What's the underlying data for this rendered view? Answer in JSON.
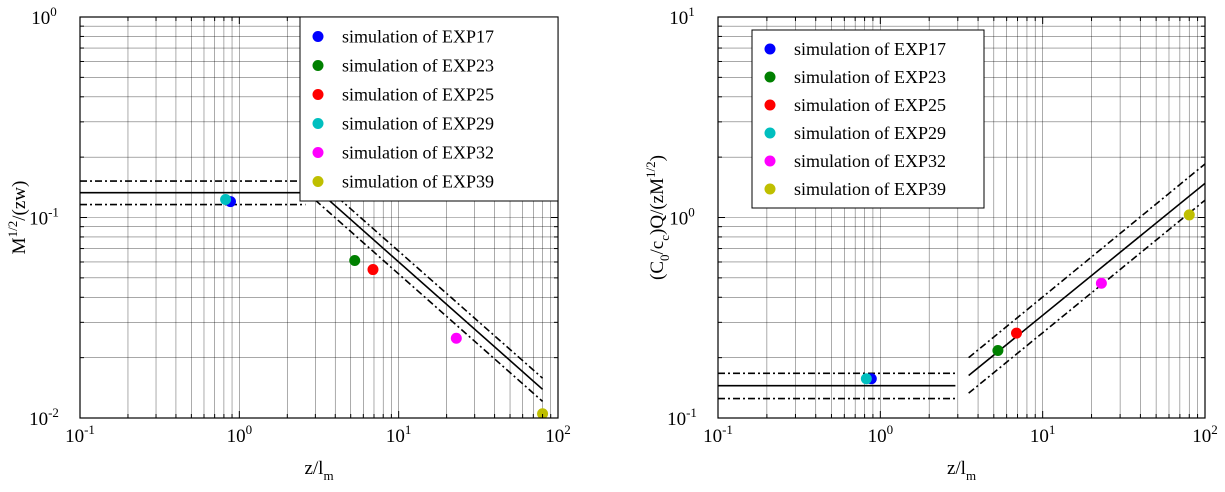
{
  "chart_data": [
    {
      "type": "scatter",
      "xscale": "log",
      "yscale": "log",
      "xlim": [
        0.1,
        100
      ],
      "ylim": [
        0.01,
        1
      ],
      "grid": true,
      "legend_position": "top-right",
      "xlabel": {
        "base": "z/l",
        "sub": "m"
      },
      "ylabel": {
        "base": "M",
        "sup": "1/2",
        "tail": "/(zw)"
      },
      "xticks": [
        {
          "base": "10",
          "exp": "-1"
        },
        {
          "base": "10",
          "exp": "0"
        },
        {
          "base": "10",
          "exp": "1"
        },
        {
          "base": "10",
          "exp": "2"
        }
      ],
      "yticks": [
        {
          "base": "10",
          "exp": "-2"
        },
        {
          "base": "10",
          "exp": "-1"
        },
        {
          "base": "10",
          "exp": "0"
        }
      ],
      "series": [
        {
          "name": "simulation of EXP17",
          "color": "#0000ff",
          "x": [
            0.88
          ],
          "y": [
            0.12
          ]
        },
        {
          "name": "simulation of EXP23",
          "color": "#008000",
          "x": [
            5.3
          ],
          "y": [
            0.061
          ]
        },
        {
          "name": "simulation of EXP25",
          "color": "#ff0000",
          "x": [
            6.9
          ],
          "y": [
            0.055
          ]
        },
        {
          "name": "simulation of EXP29",
          "color": "#00bfbf",
          "x": [
            0.82
          ],
          "y": [
            0.123
          ]
        },
        {
          "name": "simulation of EXP32",
          "color": "#ff00ff",
          "x": [
            23
          ],
          "y": [
            0.025
          ]
        },
        {
          "name": "simulation of EXP39",
          "color": "#bfbf00",
          "x": [
            80
          ],
          "y": [
            0.0105
          ]
        }
      ],
      "reference_lines": [
        {
          "style": "solid",
          "x": [
            0.1,
            2.6
          ],
          "y": [
            0.133,
            0.133
          ]
        },
        {
          "style": "dashdot",
          "x": [
            0.1,
            2.6
          ],
          "y": [
            0.152,
            0.152
          ]
        },
        {
          "style": "dashdot",
          "x": [
            0.1,
            2.6
          ],
          "y": [
            0.116,
            0.116
          ]
        },
        {
          "style": "solid",
          "x": [
            3.0,
            80
          ],
          "y": [
            0.14,
            0.0139
          ]
        },
        {
          "style": "dashdot",
          "x": [
            3.0,
            80
          ],
          "y": [
            0.158,
            0.0158
          ]
        },
        {
          "style": "dashdot",
          "x": [
            3.0,
            80
          ],
          "y": [
            0.122,
            0.0121
          ]
        }
      ]
    },
    {
      "type": "scatter",
      "xscale": "log",
      "yscale": "log",
      "xlim": [
        0.1,
        100
      ],
      "ylim": [
        0.1,
        10
      ],
      "grid": true,
      "legend_position": "top-left",
      "xlabel": {
        "base": "z/l",
        "sub": "m"
      },
      "ylabel": {
        "p1": "(C",
        "sub1": "0",
        "p2": "/c",
        "sub2": "c",
        "p3": ")Q/(zM",
        "sup": "1/2",
        "p4": ")"
      },
      "xticks": [
        {
          "base": "10",
          "exp": "-1"
        },
        {
          "base": "10",
          "exp": "0"
        },
        {
          "base": "10",
          "exp": "1"
        },
        {
          "base": "10",
          "exp": "2"
        }
      ],
      "yticks": [
        {
          "base": "10",
          "exp": "-1"
        },
        {
          "base": "10",
          "exp": "0"
        },
        {
          "base": "10",
          "exp": "1"
        }
      ],
      "series": [
        {
          "name": "simulation of EXP17",
          "color": "#0000ff",
          "x": [
            0.88
          ],
          "y": [
            0.157
          ]
        },
        {
          "name": "simulation of EXP23",
          "color": "#008000",
          "x": [
            5.3
          ],
          "y": [
            0.217
          ]
        },
        {
          "name": "simulation of EXP25",
          "color": "#ff0000",
          "x": [
            6.9
          ],
          "y": [
            0.265
          ]
        },
        {
          "name": "simulation of EXP29",
          "color": "#00bfbf",
          "x": [
            0.82
          ],
          "y": [
            0.157
          ]
        },
        {
          "name": "simulation of EXP32",
          "color": "#ff00ff",
          "x": [
            23
          ],
          "y": [
            0.47
          ]
        },
        {
          "name": "simulation of EXP39",
          "color": "#bfbf00",
          "x": [
            80
          ],
          "y": [
            1.03
          ]
        }
      ],
      "reference_lines": [
        {
          "style": "solid",
          "x": [
            0.1,
            2.9
          ],
          "y": [
            0.145,
            0.145
          ]
        },
        {
          "style": "dashdot",
          "x": [
            0.1,
            2.9
          ],
          "y": [
            0.167,
            0.167
          ]
        },
        {
          "style": "dashdot",
          "x": [
            0.1,
            2.9
          ],
          "y": [
            0.125,
            0.125
          ]
        },
        {
          "style": "solid",
          "x": [
            3.5,
            100
          ],
          "y": [
            0.163,
            1.48
          ]
        },
        {
          "style": "dashdot",
          "x": [
            3.5,
            100
          ],
          "y": [
            0.2,
            1.85
          ]
        },
        {
          "style": "dashdot",
          "x": [
            3.5,
            100
          ],
          "y": [
            0.133,
            1.22
          ]
        }
      ]
    }
  ]
}
